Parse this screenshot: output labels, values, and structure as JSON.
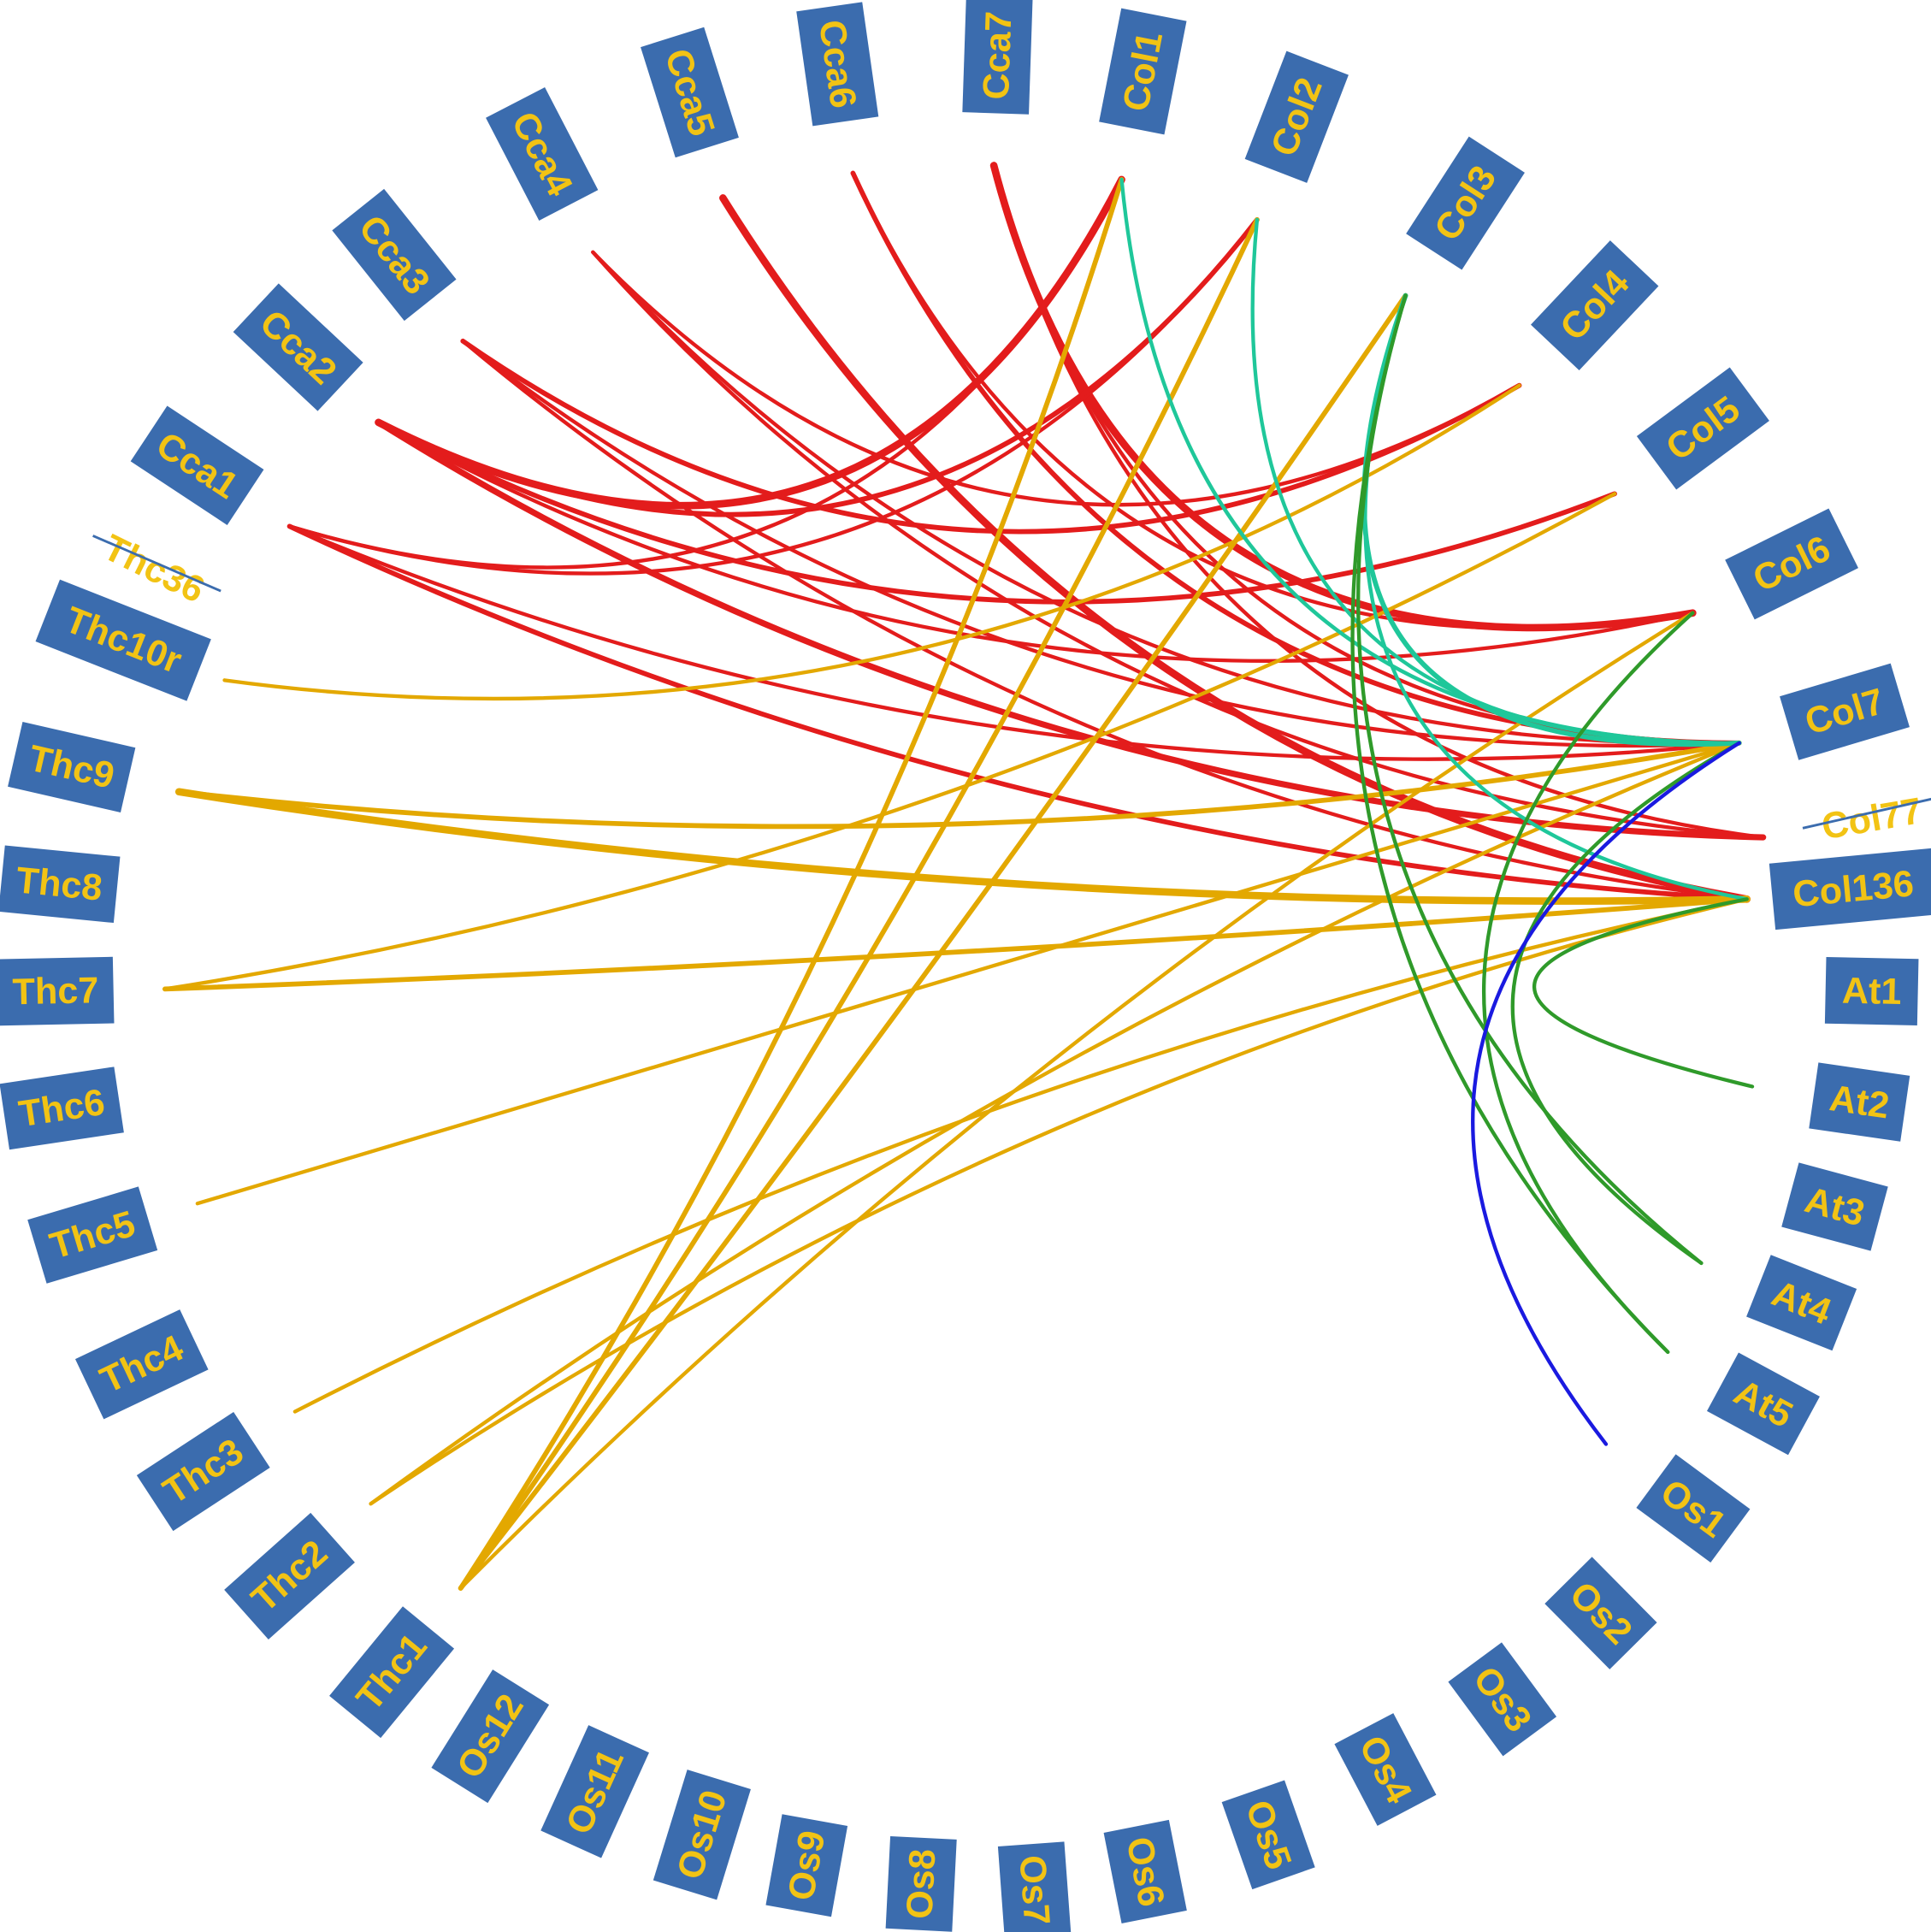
{
  "nodes": [
    {
      "label": "Cca1"
    },
    {
      "label": "Cca2"
    },
    {
      "label": "Cca3"
    },
    {
      "label": "Cca4"
    },
    {
      "label": "Cca5"
    },
    {
      "label": "Cca6"
    },
    {
      "label": "Cca7"
    },
    {
      "label": "Col1"
    },
    {
      "label": "Col2"
    },
    {
      "label": "Col3"
    },
    {
      "label": "Col4"
    },
    {
      "label": "Col5"
    },
    {
      "label": "Col6"
    },
    {
      "label": "Col7"
    },
    {
      "label": "Col77"
    },
    {
      "label": "Col136"
    },
    {
      "label": "At1"
    },
    {
      "label": "At2"
    },
    {
      "label": "At3"
    },
    {
      "label": "At4"
    },
    {
      "label": "At5"
    },
    {
      "label": "Os1"
    },
    {
      "label": "Os2"
    },
    {
      "label": "Os3"
    },
    {
      "label": "Os4"
    },
    {
      "label": "Os5"
    },
    {
      "label": "Os6"
    },
    {
      "label": "Os7"
    },
    {
      "label": "Os8"
    },
    {
      "label": "Os9"
    },
    {
      "label": "Os10"
    },
    {
      "label": "Os11"
    },
    {
      "label": "Os12"
    },
    {
      "label": "Thc1"
    },
    {
      "label": "Thc2"
    },
    {
      "label": "Thc3"
    },
    {
      "label": "Thc4"
    },
    {
      "label": "Thc5"
    },
    {
      "label": "Thc6"
    },
    {
      "label": "Thc7"
    },
    {
      "label": "Thc8"
    },
    {
      "label": "Thc9"
    },
    {
      "label": "Thc10r"
    },
    {
      "label": "Thc36"
    }
  ]
}
